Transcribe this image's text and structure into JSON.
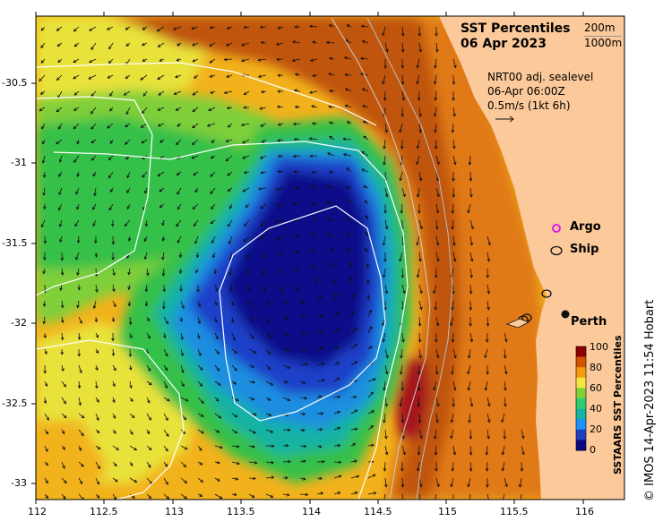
{
  "title": {
    "line1": "SST Percentiles",
    "line2": "06 Apr 2023"
  },
  "isobaths": {
    "shallow": "200m",
    "deep": "1000m"
  },
  "current_info": {
    "line1": "NRT00 adj. sealevel",
    "line2": "06-Apr 06:00Z",
    "line3": "0.5m/s (1kt 6h)"
  },
  "legend": {
    "argo": "Argo",
    "ship": "Ship"
  },
  "places": {
    "perth": "Perth"
  },
  "colorbar": {
    "title": "SSTAARS SST Percentiles",
    "ticks": [
      "100",
      "80",
      "60",
      "40",
      "20",
      "0"
    ],
    "colors": [
      "#8b0000",
      "#d35400",
      "#f39c12",
      "#f4e542",
      "#7fd13b",
      "#2ecc71",
      "#17b3a3",
      "#1e90ff",
      "#1f3fbf",
      "#0a0a80"
    ]
  },
  "axes": {
    "x_ticks": [
      "112",
      "112.5",
      "113",
      "113.5",
      "114",
      "114.5",
      "115",
      "115.5",
      "116"
    ],
    "y_ticks": [
      "-30.5",
      "-31",
      "-31.5",
      "-32",
      "-32.5",
      "-33"
    ]
  },
  "credit": "© IMOS 14-Apr-2023 11:54 Hobart",
  "colors": {
    "land": "#fbc99a",
    "very_warm": "#b5400a",
    "warm": "#e07a14",
    "mid_warm": "#f2b21c",
    "yellow": "#e9e23b",
    "light_green": "#9ad53a",
    "green": "#35c04a",
    "teal": "#19b39d",
    "light_blue": "#1f8ee0",
    "blue": "#1f3fc8",
    "deep_blue": "#0c0f8a",
    "hot": "#a5121a"
  }
}
